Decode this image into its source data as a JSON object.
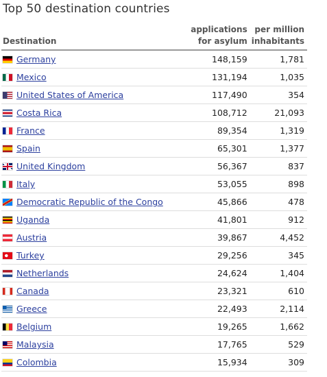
{
  "title": "Top 50 destination countries",
  "headers": {
    "destination": "Destination",
    "applications_line1": "applications",
    "applications_line2": "for asylum",
    "per_million_line1": "per million",
    "per_million_line2": "inhabitants"
  },
  "rows": [
    {
      "country": "Germany",
      "applications": "148,159",
      "per_million": "1,781",
      "flag_icon": "germany-flag-icon"
    },
    {
      "country": "Mexico",
      "applications": "131,194",
      "per_million": "1,035",
      "flag_icon": "mexico-flag-icon"
    },
    {
      "country": "United States of America",
      "applications": "117,490",
      "per_million": "354",
      "flag_icon": "usa-flag-icon"
    },
    {
      "country": "Costa Rica",
      "applications": "108,712",
      "per_million": "21,093",
      "flag_icon": "costa-rica-flag-icon"
    },
    {
      "country": "France",
      "applications": "89,354",
      "per_million": "1,319",
      "flag_icon": "france-flag-icon"
    },
    {
      "country": "Spain",
      "applications": "65,301",
      "per_million": "1,377",
      "flag_icon": "spain-flag-icon"
    },
    {
      "country": "United Kingdom",
      "applications": "56,367",
      "per_million": "837",
      "flag_icon": "uk-flag-icon"
    },
    {
      "country": "Italy",
      "applications": "53,055",
      "per_million": "898",
      "flag_icon": "italy-flag-icon"
    },
    {
      "country": "Democratic Republic of the Congo",
      "applications": "45,866",
      "per_million": "478",
      "flag_icon": "drc-flag-icon"
    },
    {
      "country": "Uganda",
      "applications": "41,801",
      "per_million": "912",
      "flag_icon": "uganda-flag-icon"
    },
    {
      "country": "Austria",
      "applications": "39,867",
      "per_million": "4,452",
      "flag_icon": "austria-flag-icon"
    },
    {
      "country": "Turkey",
      "applications": "29,256",
      "per_million": "345",
      "flag_icon": "turkey-flag-icon"
    },
    {
      "country": "Netherlands",
      "applications": "24,624",
      "per_million": "1,404",
      "flag_icon": "netherlands-flag-icon"
    },
    {
      "country": "Canada",
      "applications": "23,321",
      "per_million": "610",
      "flag_icon": "canada-flag-icon"
    },
    {
      "country": "Greece",
      "applications": "22,493",
      "per_million": "2,114",
      "flag_icon": "greece-flag-icon"
    },
    {
      "country": "Belgium",
      "applications": "19,265",
      "per_million": "1,662",
      "flag_icon": "belgium-flag-icon"
    },
    {
      "country": "Malaysia",
      "applications": "17,765",
      "per_million": "529",
      "flag_icon": "malaysia-flag-icon"
    },
    {
      "country": "Colombia",
      "applications": "15,934",
      "per_million": "309",
      "flag_icon": "colombia-flag-icon"
    }
  ],
  "colors": {
    "link": "#2b3f9e",
    "header_rule": "#999999",
    "row_rule": "#dddddd"
  }
}
